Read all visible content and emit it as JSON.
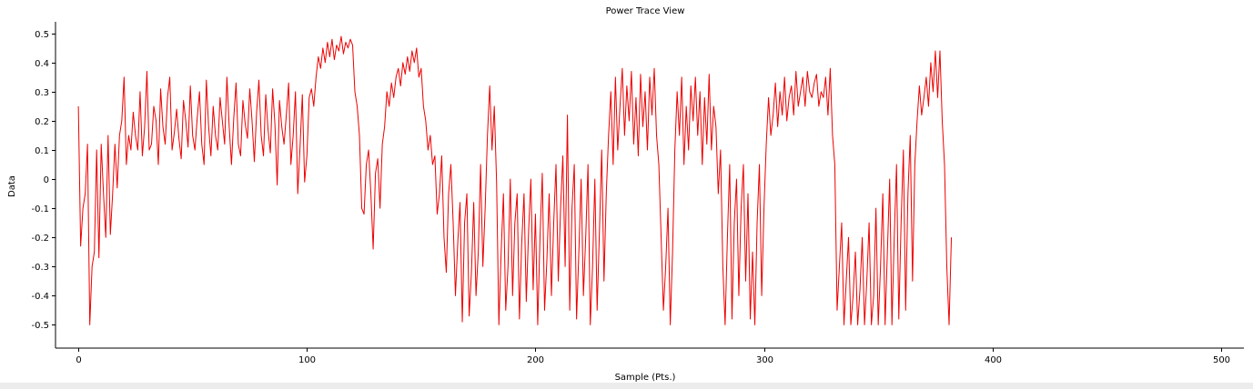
{
  "window": {
    "title": "Power Trace View"
  },
  "colors": {
    "trace": "#ee0000",
    "axis": "#000000",
    "background": "#ffffff"
  },
  "chart_data": {
    "type": "line",
    "title": "Power Trace View",
    "xlabel": "Sample (Pts.)",
    "ylabel": "Data",
    "xlim": [
      -10,
      510
    ],
    "ylim": [
      -0.58,
      0.54
    ],
    "xticks": [
      0,
      100,
      200,
      300,
      400,
      500
    ],
    "xtick_labels": [
      "0",
      "100",
      "200",
      "300",
      "400",
      "500"
    ],
    "yticks": [
      0.5,
      0.4,
      0.3,
      0.2,
      0.1,
      0,
      -0.1,
      -0.2,
      -0.3,
      -0.4,
      -0.5
    ],
    "ytick_labels": [
      "0.5",
      "0.4",
      "0.3",
      "0.2",
      "0.1",
      "0",
      "-0.1",
      "-0.2",
      "-0.3",
      "-0.4",
      "-0.5"
    ],
    "grid": false,
    "legend": "none",
    "series": [
      {
        "x_start": 0,
        "x_step": 1,
        "values": [
          0.25,
          -0.23,
          -0.1,
          -0.05,
          0.12,
          -0.5,
          -0.3,
          -0.25,
          0.1,
          -0.27,
          0.12,
          -0.05,
          -0.2,
          0.15,
          -0.19,
          -0.05,
          0.12,
          -0.03,
          0.15,
          0.2,
          0.35,
          0.05,
          0.15,
          0.1,
          0.23,
          0.15,
          0.1,
          0.3,
          0.08,
          0.18,
          0.37,
          0.1,
          0.12,
          0.25,
          0.2,
          0.05,
          0.31,
          0.18,
          0.12,
          0.28,
          0.35,
          0.1,
          0.16,
          0.24,
          0.14,
          0.07,
          0.27,
          0.2,
          0.11,
          0.32,
          0.15,
          0.1,
          0.21,
          0.3,
          0.12,
          0.05,
          0.34,
          0.18,
          0.08,
          0.25,
          0.15,
          0.1,
          0.28,
          0.2,
          0.12,
          0.35,
          0.18,
          0.05,
          0.21,
          0.33,
          0.12,
          0.08,
          0.27,
          0.19,
          0.14,
          0.31,
          0.2,
          0.06,
          0.23,
          0.34,
          0.15,
          0.08,
          0.29,
          0.17,
          0.09,
          0.31,
          0.19,
          -0.02,
          0.27,
          0.18,
          0.12,
          0.22,
          0.33,
          0.05,
          0.15,
          0.3,
          -0.05,
          0.11,
          0.29,
          -0.01,
          0.08,
          0.28,
          0.31,
          0.25,
          0.35,
          0.42,
          0.38,
          0.45,
          0.4,
          0.47,
          0.42,
          0.48,
          0.41,
          0.46,
          0.44,
          0.49,
          0.43,
          0.47,
          0.45,
          0.48,
          0.46,
          0.3,
          0.25,
          0.15,
          -0.1,
          -0.12,
          0.05,
          0.1,
          -0.05,
          -0.24,
          0.02,
          0.07,
          -0.1,
          0.12,
          0.18,
          0.3,
          0.25,
          0.33,
          0.28,
          0.35,
          0.38,
          0.32,
          0.4,
          0.36,
          0.42,
          0.37,
          0.44,
          0.4,
          0.45,
          0.35,
          0.38,
          0.25,
          0.2,
          0.1,
          0.15,
          0.05,
          0.08,
          -0.12,
          -0.05,
          0.08,
          -0.2,
          -0.32,
          -0.05,
          0.05,
          -0.15,
          -0.4,
          -0.22,
          -0.08,
          -0.49,
          -0.15,
          -0.05,
          -0.47,
          -0.32,
          -0.08,
          -0.4,
          -0.25,
          0.05,
          -0.3,
          -0.1,
          0.15,
          0.32,
          0.1,
          0.25,
          -0.01,
          -0.5,
          -0.25,
          -0.05,
          -0.45,
          -0.3,
          0.0,
          -0.4,
          -0.15,
          -0.05,
          -0.48,
          -0.22,
          -0.05,
          -0.42,
          -0.18,
          0.0,
          -0.38,
          -0.12,
          -0.5,
          -0.2,
          0.02,
          -0.45,
          -0.28,
          -0.05,
          -0.4,
          -0.15,
          0.05,
          -0.35,
          -0.1,
          0.08,
          -0.3,
          0.22,
          -0.45,
          -0.1,
          0.05,
          -0.48,
          -0.25,
          0.0,
          -0.4,
          -0.2,
          0.05,
          -0.5,
          -0.3,
          0.0,
          -0.45,
          -0.18,
          0.1,
          -0.35,
          -0.05,
          0.15,
          0.3,
          0.05,
          0.35,
          0.1,
          0.25,
          0.38,
          0.15,
          0.32,
          0.2,
          0.37,
          0.12,
          0.28,
          0.08,
          0.36,
          0.18,
          0.3,
          0.1,
          0.35,
          0.22,
          0.38,
          0.15,
          0.05,
          -0.2,
          -0.45,
          -0.3,
          -0.1,
          -0.5,
          -0.25,
          0.1,
          0.3,
          0.15,
          0.35,
          0.05,
          0.25,
          0.1,
          0.32,
          0.2,
          0.35,
          0.15,
          0.3,
          0.05,
          0.28,
          0.12,
          0.36,
          0.1,
          0.25,
          0.18,
          -0.05,
          0.1,
          -0.3,
          -0.5,
          -0.2,
          0.05,
          -0.48,
          -0.15,
          0.0,
          -0.4,
          -0.1,
          0.05,
          -0.35,
          -0.05,
          -0.48,
          -0.25,
          -0.5,
          -0.15,
          0.05,
          -0.4,
          -0.1,
          0.12,
          0.28,
          0.15,
          0.22,
          0.33,
          0.18,
          0.3,
          0.22,
          0.35,
          0.2,
          0.28,
          0.32,
          0.22,
          0.37,
          0.25,
          0.3,
          0.35,
          0.25,
          0.37,
          0.3,
          0.28,
          0.33,
          0.36,
          0.25,
          0.3,
          0.28,
          0.35,
          0.22,
          0.38,
          0.15,
          0.05,
          -0.45,
          -0.3,
          -0.15,
          -0.5,
          -0.35,
          -0.2,
          -0.5,
          -0.4,
          -0.25,
          -0.5,
          -0.38,
          -0.2,
          -0.5,
          -0.35,
          -0.15,
          -0.5,
          -0.4,
          -0.1,
          -0.5,
          -0.3,
          -0.05,
          -0.5,
          -0.25,
          0.0,
          -0.5,
          -0.2,
          0.05,
          -0.48,
          -0.15,
          0.1,
          -0.45,
          -0.05,
          0.15,
          -0.35,
          0.05,
          0.2,
          0.32,
          0.22,
          0.28,
          0.35,
          0.25,
          0.4,
          0.3,
          0.44,
          0.28,
          0.44,
          0.2,
          0.05,
          -0.3,
          -0.5,
          -0.2
        ]
      }
    ]
  }
}
